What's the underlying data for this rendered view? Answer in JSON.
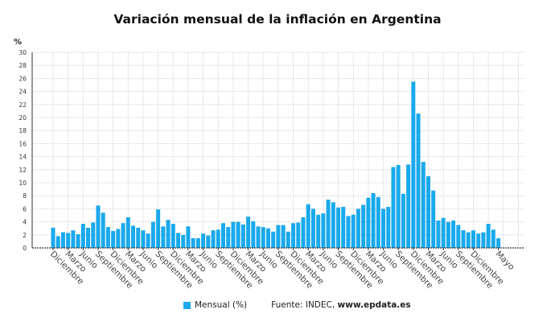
{
  "chart_data": {
    "type": "bar",
    "title": "Variación mensual de la inflación en Argentina",
    "ylabel": "%",
    "ylim": [
      0,
      30
    ],
    "yticks": [
      0,
      2,
      4,
      6,
      8,
      10,
      12,
      14,
      16,
      18,
      20,
      22,
      24,
      26,
      28,
      30
    ],
    "grid": true,
    "legend_placement": "bottom",
    "series": [
      {
        "name": "Mensual (%)",
        "color": "#1aa9ec",
        "values": [
          3.1,
          1.8,
          2.4,
          2.3,
          2.7,
          2.1,
          3.7,
          3.1,
          3.9,
          6.5,
          5.4,
          3.2,
          2.6,
          2.9,
          3.8,
          4.7,
          3.4,
          3.1,
          2.7,
          2.2,
          4.0,
          5.9,
          3.3,
          4.3,
          3.7,
          2.3,
          2.0,
          3.3,
          1.5,
          1.5,
          2.2,
          1.9,
          2.7,
          2.8,
          3.8,
          3.2,
          4.0,
          4.0,
          3.6,
          4.8,
          4.1,
          3.3,
          3.2,
          3.0,
          2.5,
          3.5,
          3.5,
          2.5,
          3.8,
          3.9,
          4.7,
          6.7,
          6.0,
          5.1,
          5.3,
          7.4,
          7.0,
          6.2,
          6.3,
          4.9,
          5.1,
          6.0,
          6.6,
          7.7,
          8.4,
          7.8,
          6.0,
          6.3,
          12.4,
          12.7,
          8.3,
          12.8,
          25.5,
          20.6,
          13.2,
          11.0,
          8.8,
          4.2,
          4.6,
          4.0,
          4.2,
          3.5,
          2.7,
          2.4,
          2.7,
          2.2,
          2.4,
          3.7,
          2.8,
          1.5
        ]
      }
    ],
    "xtick_labels": [
      {
        "index": 0,
        "label": "Diciembre"
      },
      {
        "index": 3,
        "label": "Marzo"
      },
      {
        "index": 6,
        "label": "Junio"
      },
      {
        "index": 9,
        "label": "Septiembre"
      },
      {
        "index": 12,
        "label": "Diciembre"
      },
      {
        "index": 15,
        "label": "Marzo"
      },
      {
        "index": 18,
        "label": "Junio"
      },
      {
        "index": 21,
        "label": "Septiembre"
      },
      {
        "index": 24,
        "label": "Diciembre"
      },
      {
        "index": 27,
        "label": "Marzo"
      },
      {
        "index": 30,
        "label": "Junio"
      },
      {
        "index": 33,
        "label": "Septiembre"
      },
      {
        "index": 36,
        "label": "Diciembre"
      },
      {
        "index": 39,
        "label": "Marzo"
      },
      {
        "index": 42,
        "label": "Junio"
      },
      {
        "index": 45,
        "label": "Septiembre"
      },
      {
        "index": 48,
        "label": "Diciembre"
      },
      {
        "index": 51,
        "label": "Marzo"
      },
      {
        "index": 54,
        "label": "Junio"
      },
      {
        "index": 57,
        "label": "Septiembre"
      },
      {
        "index": 60,
        "label": "Diciembre"
      },
      {
        "index": 63,
        "label": "Marzo"
      },
      {
        "index": 66,
        "label": "Junio"
      },
      {
        "index": 69,
        "label": "Septiembre"
      },
      {
        "index": 72,
        "label": "Diciembre"
      },
      {
        "index": 75,
        "label": "Marzo"
      },
      {
        "index": 78,
        "label": "Junio"
      },
      {
        "index": 81,
        "label": "Septiembre"
      },
      {
        "index": 84,
        "label": "Diciembre"
      },
      {
        "index": 89,
        "label": "Mayo"
      }
    ]
  },
  "legend": {
    "label": "Mensual (%)"
  },
  "source": {
    "prefix": "Fuente: INDEC, ",
    "site": "www.epdata.es"
  }
}
